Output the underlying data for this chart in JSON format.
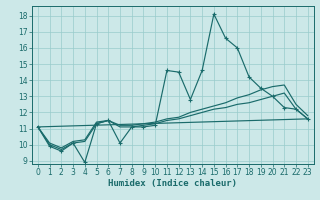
{
  "xlabel": "Humidex (Indice chaleur)",
  "bg_color": "#cce8e8",
  "grid_color": "#99cccc",
  "line_color": "#1a6b6b",
  "xlim": [
    -0.5,
    23.5
  ],
  "ylim": [
    8.8,
    18.6
  ],
  "yticks": [
    9,
    10,
    11,
    12,
    13,
    14,
    15,
    16,
    17,
    18
  ],
  "xticks": [
    0,
    1,
    2,
    3,
    4,
    5,
    6,
    7,
    8,
    9,
    10,
    11,
    12,
    13,
    14,
    15,
    16,
    17,
    18,
    19,
    20,
    21,
    22,
    23
  ],
  "line1_x": [
    0,
    1,
    2,
    3,
    4,
    5,
    6,
    7,
    8,
    9,
    10,
    11,
    12,
    13,
    14,
    15,
    16,
    17,
    18,
    19,
    20,
    21,
    22,
    23
  ],
  "line1_y": [
    11.1,
    9.9,
    9.6,
    10.1,
    8.9,
    11.3,
    11.5,
    10.1,
    11.1,
    11.1,
    11.2,
    14.6,
    14.5,
    12.8,
    14.6,
    18.1,
    16.6,
    16.0,
    14.2,
    13.5,
    13.0,
    12.3,
    12.2,
    11.6
  ],
  "line2_x": [
    0,
    1,
    2,
    3,
    4,
    5,
    6,
    7,
    8,
    9,
    10,
    11,
    12,
    13,
    14,
    15,
    16,
    17,
    18,
    19,
    20,
    21,
    22,
    23
  ],
  "line2_y": [
    11.1,
    10.0,
    9.7,
    10.1,
    10.2,
    11.3,
    11.5,
    11.1,
    11.1,
    11.2,
    11.3,
    11.5,
    11.6,
    11.8,
    12.0,
    12.2,
    12.3,
    12.5,
    12.6,
    12.8,
    13.0,
    13.2,
    12.2,
    11.6
  ],
  "line3_x": [
    0,
    1,
    2,
    3,
    4,
    5,
    6,
    7,
    8,
    9,
    10,
    11,
    12,
    13,
    14,
    15,
    16,
    17,
    18,
    19,
    20,
    21,
    22,
    23
  ],
  "line3_y": [
    11.1,
    10.1,
    9.8,
    10.2,
    10.3,
    11.4,
    11.5,
    11.2,
    11.2,
    11.3,
    11.4,
    11.6,
    11.7,
    12.0,
    12.2,
    12.4,
    12.6,
    12.9,
    13.1,
    13.4,
    13.6,
    13.7,
    12.5,
    11.8
  ],
  "line4_x": [
    0,
    23
  ],
  "line4_y": [
    11.1,
    11.6
  ]
}
